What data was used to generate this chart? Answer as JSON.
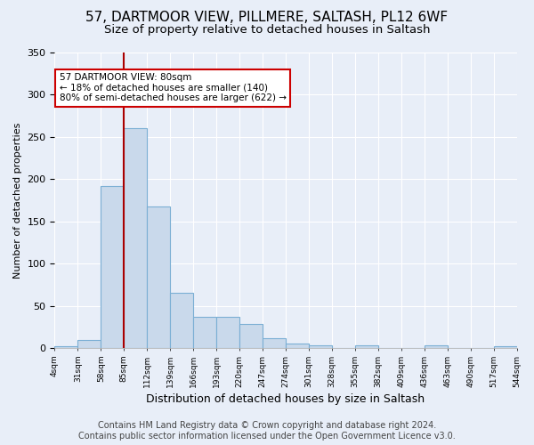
{
  "title1": "57, DARTMOOR VIEW, PILLMERE, SALTASH, PL12 6WF",
  "title2": "Size of property relative to detached houses in Saltash",
  "xlabel": "Distribution of detached houses by size in Saltash",
  "ylabel": "Number of detached properties",
  "tick_labels": [
    "4sqm",
    "31sqm",
    "58sqm",
    "85sqm",
    "112sqm",
    "139sqm",
    "166sqm",
    "193sqm",
    "220sqm",
    "247sqm",
    "274sqm",
    "301sqm",
    "328sqm",
    "355sqm",
    "382sqm",
    "409sqm",
    "436sqm",
    "463sqm",
    "490sqm",
    "517sqm",
    "544sqm"
  ],
  "bar_values": [
    2,
    10,
    192,
    260,
    168,
    65,
    37,
    37,
    29,
    12,
    5,
    3,
    0,
    3,
    0,
    0,
    3,
    0,
    0,
    2
  ],
  "bar_color": "#c9d9eb",
  "bar_edge_color": "#7bafd4",
  "vline_x": 3.0,
  "vline_color": "#aa0000",
  "annotation_text": "57 DARTMOOR VIEW: 80sqm\n← 18% of detached houses are smaller (140)\n80% of semi-detached houses are larger (622) →",
  "annotation_box_color": "white",
  "annotation_box_edge": "#cc0000",
  "ylim": [
    0,
    350
  ],
  "yticks": [
    0,
    50,
    100,
    150,
    200,
    250,
    300,
    350
  ],
  "footer1": "Contains HM Land Registry data © Crown copyright and database right 2024.",
  "footer2": "Contains public sector information licensed under the Open Government Licence v3.0.",
  "bg_color": "#e8eef8",
  "grid_color": "#ffffff",
  "title1_fontsize": 11,
  "title2_fontsize": 9.5,
  "ylabel_fontsize": 8,
  "xlabel_fontsize": 9,
  "tick_fontsize": 6.5,
  "footer_fontsize": 7,
  "annot_fontsize": 7.5
}
